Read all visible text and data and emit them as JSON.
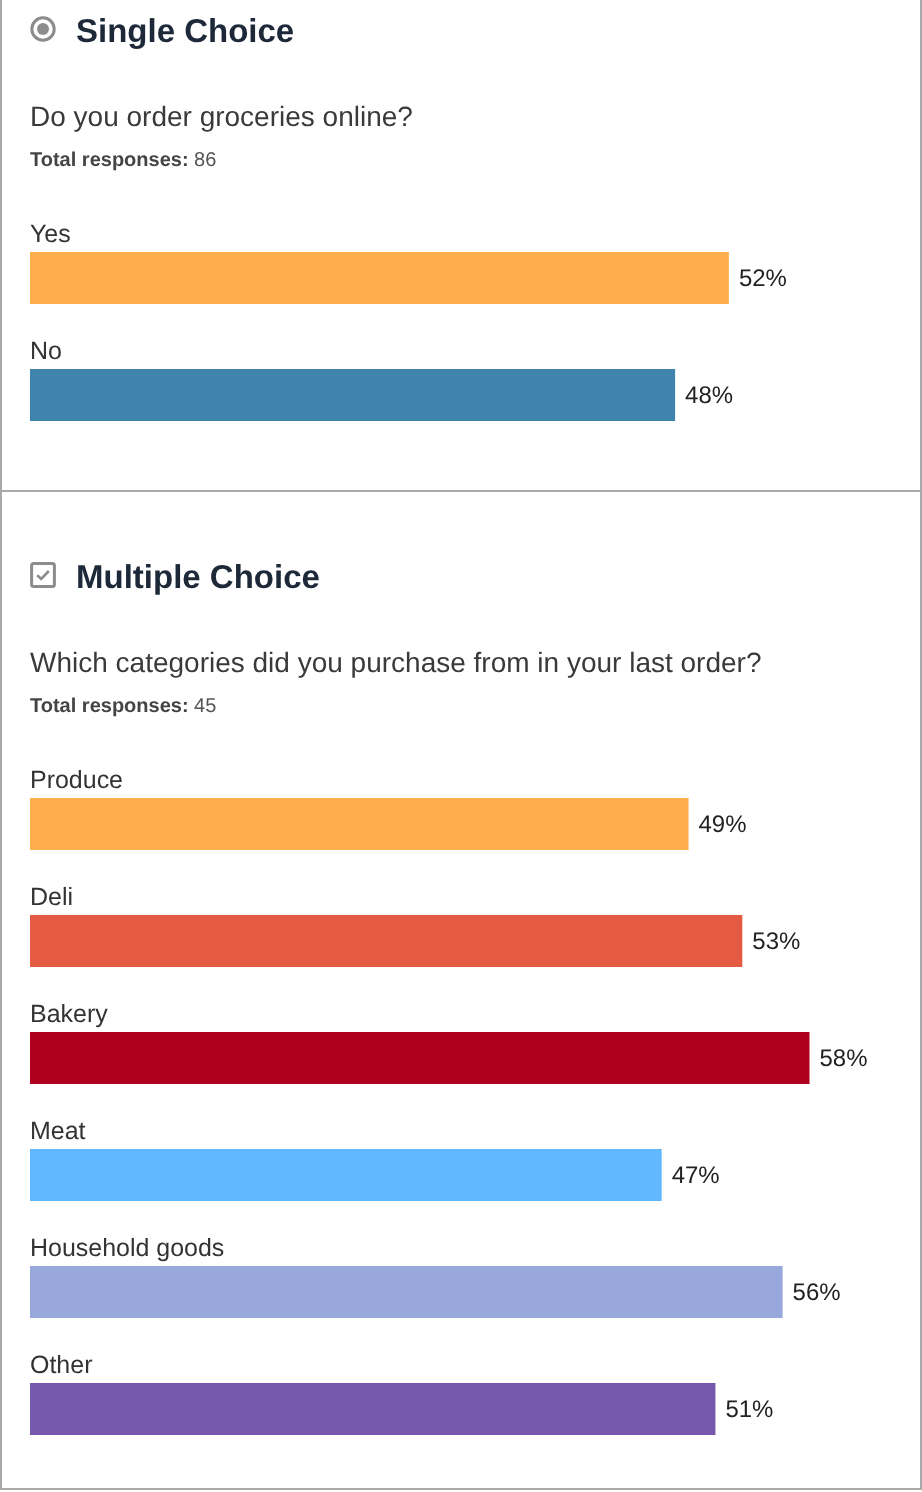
{
  "chart_data": [
    {
      "type": "bar",
      "orientation": "horizontal",
      "title": "Single Choice",
      "subtitle": "Do you order groceries online?",
      "annotations": [
        "Total responses: 86"
      ],
      "categories": [
        "Yes",
        "No"
      ],
      "values": [
        52,
        48
      ],
      "colors": [
        "#ffae4d",
        "#3e84ac"
      ],
      "value_labels": [
        "52%",
        "48%"
      ],
      "tick_labels": "y"
    },
    {
      "type": "bar",
      "orientation": "horizontal",
      "title": "Multiple Choice",
      "subtitle": "Which categories did you purchase from in your last order?",
      "annotations": [
        "Total responses: 45"
      ],
      "categories": [
        "Produce",
        "Deli",
        "Bakery",
        "Meat",
        "Household goods",
        "Other"
      ],
      "values": [
        49,
        53,
        58,
        47,
        56,
        51
      ],
      "colors": [
        "#ffae4d",
        "#e55a42",
        "#af0020",
        "#62b8ff",
        "#98a8dc",
        "#7658ad"
      ],
      "value_labels": [
        "49%",
        "53%",
        "58%",
        "47%",
        "56%",
        "51%"
      ],
      "tick_labels": "y"
    }
  ]
}
